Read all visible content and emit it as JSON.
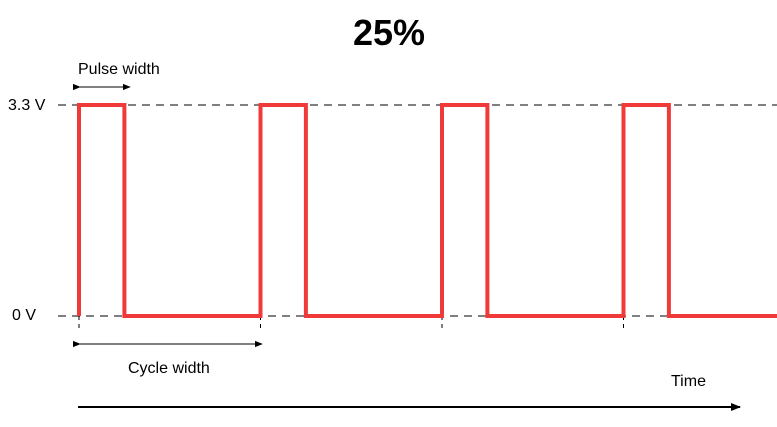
{
  "title": "25%",
  "y_levels": {
    "high_label": "3.3 V",
    "low_label": "0 V"
  },
  "annotations": {
    "pulse_width": "Pulse width",
    "cycle_width": "Cycle width",
    "time": "Time"
  },
  "chart_data": {
    "type": "line",
    "title": "25%",
    "xlabel": "Time",
    "ylabel": "",
    "duty_cycle_percent": 25,
    "levels": [
      0,
      3.3
    ],
    "level_units": "V",
    "cycles_shown": 4,
    "series": [
      {
        "color": "#f03a3a"
      }
    ]
  },
  "colors": {
    "signal": "#f03a3a",
    "guide": "#000000"
  }
}
